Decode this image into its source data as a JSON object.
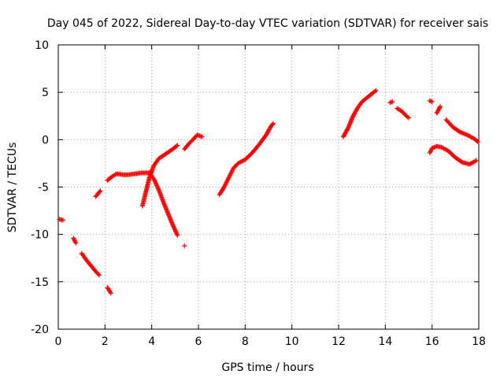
{
  "chart_data": {
    "type": "scatter",
    "title": "Day 045 of 2022, Sidereal Day-to-day VTEC variation (SDTVAR) for receiver sais",
    "xlabel": "GPS time / hours",
    "ylabel": "SDTVAR / TECUs",
    "xlim": [
      0,
      18
    ],
    "ylim": [
      -20,
      10
    ],
    "xticks": [
      0,
      2,
      4,
      6,
      8,
      10,
      12,
      14,
      16,
      18
    ],
    "yticks": [
      -20,
      -15,
      -10,
      -5,
      0,
      5,
      10
    ],
    "xtick_labels": [
      "0",
      "2",
      "4",
      "6",
      "8",
      "10",
      "12",
      "14",
      "16",
      "18"
    ],
    "ytick_labels": [
      "-20",
      "-15",
      "-10",
      "-5",
      "0",
      "5",
      "10"
    ],
    "grid": true,
    "marker": "+",
    "color": "#ff0000",
    "segments": [
      {
        "name": "seg-a",
        "points": [
          [
            0.05,
            -8.4
          ],
          [
            0.2,
            -8.5
          ]
        ]
      },
      {
        "name": "seg-b",
        "points": [
          [
            0.65,
            -10.4
          ],
          [
            0.75,
            -10.9
          ]
        ]
      },
      {
        "name": "seg-c",
        "points": [
          [
            1.0,
            -12.0
          ],
          [
            1.2,
            -12.7
          ],
          [
            1.4,
            -13.3
          ],
          [
            1.6,
            -13.9
          ],
          [
            1.75,
            -14.3
          ]
        ]
      },
      {
        "name": "seg-d",
        "points": [
          [
            1.6,
            -6.0
          ],
          [
            1.8,
            -5.4
          ]
        ]
      },
      {
        "name": "seg-e",
        "points": [
          [
            2.1,
            -15.6
          ],
          [
            2.25,
            -16.2
          ]
        ]
      },
      {
        "name": "seg-f",
        "points": [
          [
            2.1,
            -4.3
          ],
          [
            2.3,
            -3.9
          ],
          [
            2.5,
            -3.6
          ],
          [
            2.8,
            -3.7
          ],
          [
            3.0,
            -3.7
          ],
          [
            3.3,
            -3.6
          ],
          [
            3.6,
            -3.5
          ],
          [
            3.9,
            -3.5
          ],
          [
            4.0,
            -3.4
          ]
        ]
      },
      {
        "name": "seg-g",
        "points": [
          [
            3.6,
            -7.0
          ],
          [
            3.7,
            -6.0
          ],
          [
            3.8,
            -5.0
          ],
          [
            3.9,
            -4.0
          ],
          [
            4.0,
            -3.3
          ],
          [
            4.1,
            -2.7
          ],
          [
            4.3,
            -2.0
          ],
          [
            4.6,
            -1.5
          ],
          [
            4.9,
            -1.0
          ],
          [
            5.1,
            -0.6
          ]
        ]
      },
      {
        "name": "seg-h",
        "points": [
          [
            3.9,
            -3.5
          ],
          [
            4.1,
            -4.2
          ],
          [
            4.3,
            -5.3
          ],
          [
            4.5,
            -6.6
          ],
          [
            4.7,
            -7.8
          ],
          [
            4.9,
            -9.0
          ],
          [
            5.1,
            -10.1
          ]
        ]
      },
      {
        "name": "seg-i",
        "points": [
          [
            5.4,
            -11.2
          ]
        ]
      },
      {
        "name": "seg-j",
        "points": [
          [
            5.4,
            -1.0
          ],
          [
            5.6,
            -0.4
          ],
          [
            5.8,
            0.1
          ],
          [
            5.95,
            0.5
          ],
          [
            6.15,
            0.3
          ]
        ]
      },
      {
        "name": "seg-k",
        "points": [
          [
            6.9,
            -5.8
          ],
          [
            7.1,
            -5.0
          ],
          [
            7.3,
            -4.0
          ],
          [
            7.5,
            -3.0
          ],
          [
            7.7,
            -2.5
          ],
          [
            8.0,
            -2.1
          ],
          [
            8.3,
            -1.4
          ],
          [
            8.6,
            -0.5
          ],
          [
            8.9,
            0.5
          ],
          [
            9.1,
            1.4
          ],
          [
            9.2,
            1.7
          ]
        ]
      },
      {
        "name": "seg-l",
        "points": [
          [
            12.2,
            0.3
          ],
          [
            12.4,
            1.2
          ],
          [
            12.6,
            2.4
          ],
          [
            12.8,
            3.3
          ],
          [
            13.0,
            4.0
          ],
          [
            13.3,
            4.6
          ],
          [
            13.5,
            5.0
          ],
          [
            13.6,
            5.2
          ]
        ]
      },
      {
        "name": "seg-m",
        "points": [
          [
            14.2,
            3.9
          ],
          [
            14.3,
            4.0
          ]
        ]
      },
      {
        "name": "seg-n",
        "points": [
          [
            14.5,
            3.3
          ],
          [
            14.7,
            3.0
          ],
          [
            14.9,
            2.5
          ],
          [
            15.0,
            2.3
          ]
        ]
      },
      {
        "name": "seg-o",
        "points": [
          [
            15.9,
            4.1
          ],
          [
            16.0,
            4.0
          ]
        ]
      },
      {
        "name": "seg-p",
        "points": [
          [
            16.2,
            2.8
          ],
          [
            16.35,
            3.5
          ]
        ]
      },
      {
        "name": "seg-q",
        "points": [
          [
            16.6,
            2.1
          ],
          [
            16.9,
            1.3
          ],
          [
            17.2,
            0.8
          ],
          [
            17.5,
            0.5
          ],
          [
            17.8,
            0.1
          ],
          [
            17.95,
            -0.2
          ]
        ]
      },
      {
        "name": "seg-r",
        "points": [
          [
            15.9,
            -1.4
          ],
          [
            16.0,
            -0.9
          ],
          [
            16.2,
            -0.7
          ],
          [
            16.4,
            -0.8
          ],
          [
            16.7,
            -1.2
          ],
          [
            17.0,
            -1.9
          ],
          [
            17.3,
            -2.4
          ],
          [
            17.6,
            -2.6
          ],
          [
            17.9,
            -2.2
          ]
        ]
      }
    ]
  }
}
